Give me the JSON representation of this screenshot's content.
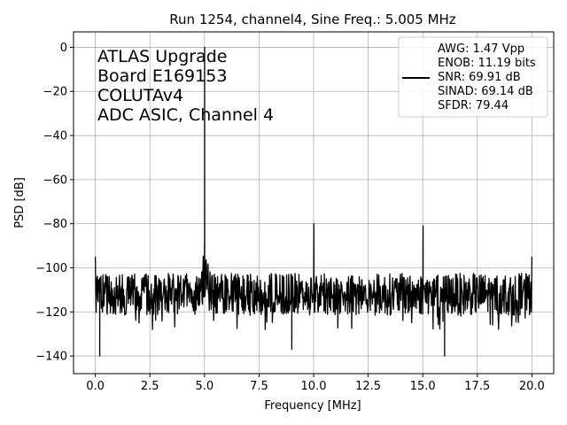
{
  "chart_data": {
    "type": "line",
    "title": "Run 1254, channel4, Sine Freq.: 5.005 MHz",
    "xlabel": "Frequency [MHz]",
    "ylabel": "PSD [dB]",
    "xlim": [
      -1.0,
      21.0
    ],
    "ylim": [
      -148,
      7
    ],
    "x_ticks": [
      0.0,
      2.5,
      5.0,
      7.5,
      10.0,
      12.5,
      15.0,
      17.5,
      20.0
    ],
    "x_tick_labels": [
      "0.0",
      "2.5",
      "5.0",
      "7.5",
      "10.0",
      "12.5",
      "15.0",
      "17.5",
      "20.0"
    ],
    "y_ticks": [
      0,
      -20,
      -40,
      -60,
      -80,
      -100,
      -120,
      -140
    ],
    "y_tick_labels": [
      "0",
      "−20",
      "−40",
      "−60",
      "−80",
      "−100",
      "−120",
      "−140"
    ],
    "grid": true,
    "line_color": "#000000",
    "annotation_lines": [
      "ATLAS Upgrade",
      " Board E169153",
      "COLUTAv4",
      "ADC ASIC, Channel 4"
    ],
    "legend_position": "top-right",
    "legend_lines": [
      "AWG: 1.47 Vpp",
      "ENOB: 11.19 bits",
      "SNR: 69.91 dB",
      "SINAD: 69.14 dB",
      "SFDR: 79.44"
    ],
    "series": [
      {
        "noise_floor_band": [
          -122,
          -102
        ],
        "start": {
          "x": 0.0,
          "y": -95
        },
        "end": {
          "x": 20.0,
          "y": -95
        },
        "peaks": [
          {
            "x": 5.005,
            "y": 0
          },
          {
            "x": 5.0,
            "y": -89
          },
          {
            "x": 10.01,
            "y": -80
          },
          {
            "x": 15.015,
            "y": -81
          }
        ],
        "dips": [
          {
            "x": 0.2,
            "y": -140
          },
          {
            "x": 9.0,
            "y": -137
          },
          {
            "x": 16.0,
            "y": -140
          }
        ]
      }
    ]
  }
}
